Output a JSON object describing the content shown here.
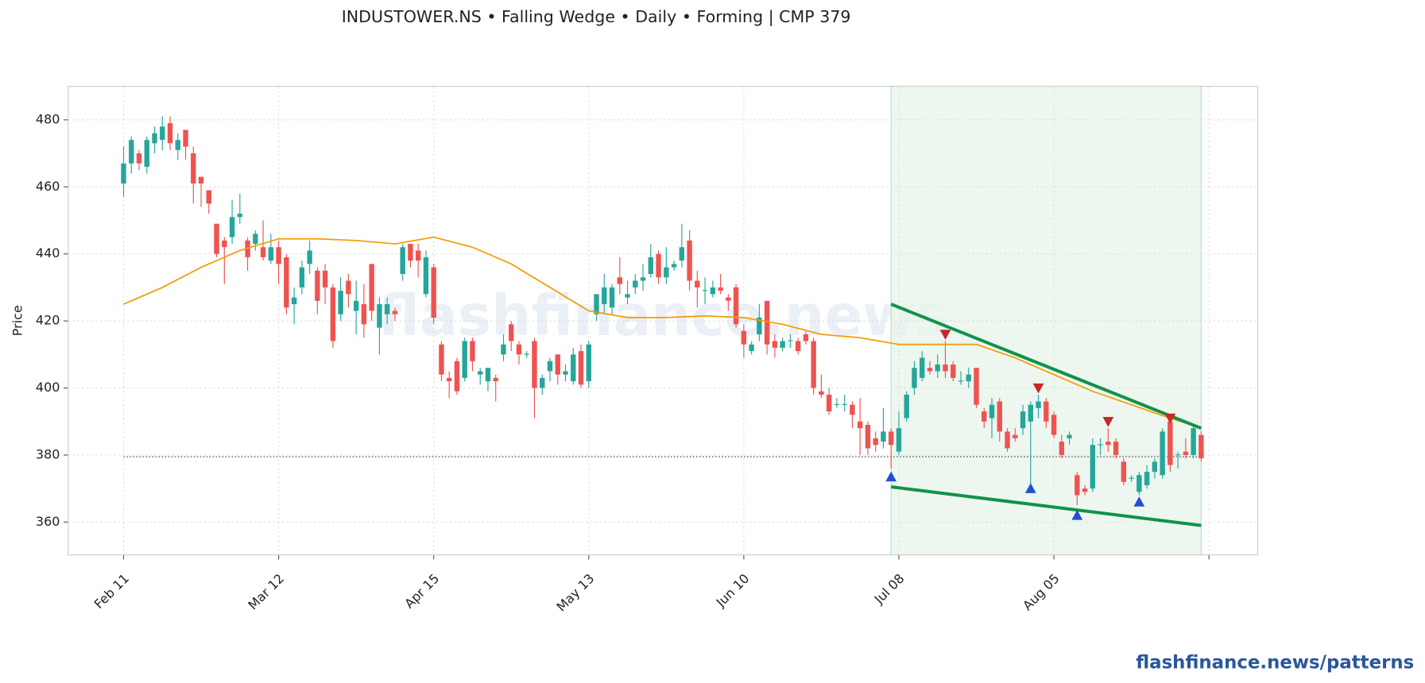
{
  "chart_data": {
    "type": "candlestick",
    "title": "INDUSTOWER.NS  •  Falling Wedge  •  Daily  •  Forming  |  CMP 379",
    "ylabel": "Price",
    "watermark": "flashfinance.news",
    "footer": "flashfinance.news/patterns",
    "up_color": "#26a69a",
    "down_color": "#ef5350",
    "grid": true,
    "xlim": [
      -7.15,
      146.3
    ],
    "ylim": [
      350.2,
      490
    ],
    "yticks": [
      360,
      380,
      400,
      420,
      440,
      460,
      480
    ],
    "xticks": [
      {
        "value": 0,
        "label": "Feb 11"
      },
      {
        "value": 20,
        "label": "Mar 12"
      },
      {
        "value": 40,
        "label": "Apr 15"
      },
      {
        "value": 60,
        "label": "May 13"
      },
      {
        "value": 80,
        "label": "Jun 10"
      },
      {
        "value": 100,
        "label": "Jul 08"
      },
      {
        "value": 120,
        "label": "Aug 05"
      },
      {
        "value": 140
      }
    ],
    "ohlc": [
      [
        461,
        472,
        457,
        467
      ],
      [
        467,
        475,
        464,
        474
      ],
      [
        470,
        471,
        465,
        467
      ],
      [
        466,
        475,
        464,
        474
      ],
      [
        473,
        478,
        470,
        476
      ],
      [
        474,
        481,
        471,
        478
      ],
      [
        479,
        481,
        471,
        473
      ],
      [
        471,
        476,
        468,
        474
      ],
      [
        477,
        477,
        468,
        472
      ],
      [
        470,
        472,
        455,
        461
      ],
      [
        463,
        463,
        454,
        461
      ],
      [
        459,
        459,
        452,
        455
      ],
      [
        449,
        449,
        439,
        440
      ],
      [
        444,
        445,
        431,
        442
      ],
      [
        445,
        456,
        443,
        451
      ],
      [
        451,
        458,
        449,
        452
      ],
      [
        444,
        445,
        435,
        439
      ],
      [
        443,
        447,
        441,
        446
      ],
      [
        442,
        450,
        438,
        439
      ],
      [
        438,
        446,
        437,
        442
      ],
      [
        442,
        444,
        431,
        437
      ],
      [
        439,
        440,
        422,
        424
      ],
      [
        425,
        430,
        419,
        427
      ],
      [
        430,
        438,
        428,
        436
      ],
      [
        437,
        444,
        434,
        441
      ],
      [
        435,
        436,
        422,
        426
      ],
      [
        435,
        437,
        425,
        430
      ],
      [
        430,
        431,
        412,
        414
      ],
      [
        422,
        433,
        420,
        429
      ],
      [
        432,
        434,
        424,
        428
      ],
      [
        423,
        432,
        416,
        426
      ],
      [
        425,
        431,
        415,
        419
      ],
      [
        437,
        437,
        420,
        423
      ],
      [
        418,
        427,
        410,
        425
      ],
      [
        422,
        427,
        419,
        425
      ],
      [
        423,
        424,
        420,
        422
      ],
      [
        434,
        443,
        432,
        442
      ],
      [
        443,
        443,
        436,
        438
      ],
      [
        441,
        443,
        433,
        438
      ],
      [
        428,
        441,
        427,
        439
      ],
      [
        436,
        437,
        419,
        421
      ],
      [
        413,
        414,
        402,
        404
      ],
      [
        403,
        405,
        397,
        402
      ],
      [
        408,
        409,
        398,
        399
      ],
      [
        403,
        415,
        402,
        414
      ],
      [
        414,
        415,
        405,
        408
      ],
      [
        404,
        406,
        401,
        405
      ],
      [
        402,
        406,
        399,
        406
      ],
      [
        403,
        404,
        396,
        402
      ],
      [
        410,
        416,
        408,
        413
      ],
      [
        419,
        420,
        411,
        414
      ],
      [
        413,
        414,
        407,
        410
      ],
      [
        410,
        411,
        409,
        410.2
      ],
      [
        414,
        415,
        391,
        400
      ],
      [
        400,
        404,
        398,
        403
      ],
      [
        405,
        409,
        402,
        408
      ],
      [
        410,
        410,
        401,
        404
      ],
      [
        404,
        407,
        402,
        405
      ],
      [
        402,
        412,
        401,
        410
      ],
      [
        411,
        413,
        400,
        401
      ],
      [
        402,
        414,
        400,
        413
      ],
      [
        422,
        428,
        420,
        428
      ],
      [
        425,
        434,
        422,
        430
      ],
      [
        424,
        431,
        422,
        430
      ],
      [
        433,
        439,
        428,
        431
      ],
      [
        427,
        432,
        425,
        428
      ],
      [
        430,
        434,
        428,
        432
      ],
      [
        432,
        437,
        429,
        433
      ],
      [
        434,
        443,
        433,
        439
      ],
      [
        440,
        441,
        431,
        433
      ],
      [
        433,
        442,
        431,
        436
      ],
      [
        436,
        438,
        435,
        437
      ],
      [
        438,
        449,
        436,
        442
      ],
      [
        444,
        447,
        429,
        432
      ],
      [
        432,
        435,
        424,
        430
      ],
      [
        429,
        433,
        425,
        429.2
      ],
      [
        428,
        432,
        427,
        430
      ],
      [
        430,
        434,
        428,
        429
      ],
      [
        427,
        428,
        423,
        426
      ],
      [
        430,
        431,
        418,
        419
      ],
      [
        417,
        419,
        409,
        413
      ],
      [
        411,
        414,
        410,
        413
      ],
      [
        416,
        425,
        414,
        421
      ],
      [
        426,
        426,
        410,
        413
      ],
      [
        414,
        416,
        409,
        412
      ],
      [
        412,
        415,
        411,
        414
      ],
      [
        414,
        416,
        412,
        414.2
      ],
      [
        414,
        415,
        410,
        411
      ],
      [
        416,
        417,
        413,
        414
      ],
      [
        414,
        415,
        398,
        400
      ],
      [
        399,
        404,
        397,
        398
      ],
      [
        398,
        400,
        392,
        393
      ],
      [
        395,
        397,
        394,
        395.2
      ],
      [
        395,
        398,
        393,
        395.2
      ],
      [
        395,
        396,
        388,
        392
      ],
      [
        390,
        397,
        380,
        388
      ],
      [
        389,
        390,
        380,
        382
      ],
      [
        385,
        387,
        381,
        383
      ],
      [
        384,
        394,
        382,
        387
      ],
      [
        387,
        388,
        376,
        383
      ],
      [
        381,
        393,
        380,
        388
      ],
      [
        391,
        399,
        390,
        398
      ],
      [
        400,
        408,
        398,
        406
      ],
      [
        403,
        411,
        402,
        409
      ],
      [
        406,
        408,
        404,
        405
      ],
      [
        405,
        410,
        403,
        407
      ],
      [
        407,
        414,
        403,
        405
      ],
      [
        407,
        408,
        402,
        403
      ],
      [
        402,
        405,
        401,
        402.2
      ],
      [
        402,
        406,
        400,
        404
      ],
      [
        406,
        406,
        394,
        395
      ],
      [
        393,
        394,
        388,
        390
      ],
      [
        391,
        397,
        385,
        395
      ],
      [
        396,
        397,
        384,
        387
      ],
      [
        387,
        388,
        381,
        382
      ],
      [
        386,
        388,
        384,
        385
      ],
      [
        388,
        395,
        386,
        393
      ],
      [
        390,
        396,
        371,
        395
      ],
      [
        394,
        398,
        391,
        396
      ],
      [
        396,
        397,
        388,
        390
      ],
      [
        392,
        393,
        385,
        386
      ],
      [
        384,
        386,
        379,
        380
      ],
      [
        385,
        387,
        383,
        386
      ],
      [
        374,
        375,
        365,
        368
      ],
      [
        370,
        371,
        368,
        369
      ],
      [
        370,
        385,
        369,
        383
      ],
      [
        383,
        385,
        380,
        383.2
      ],
      [
        384,
        388,
        381,
        383
      ],
      [
        384,
        385,
        379,
        380
      ],
      [
        378,
        379,
        371,
        372
      ],
      [
        373,
        374,
        372,
        373.2
      ],
      [
        369,
        375,
        368,
        374
      ],
      [
        371,
        377,
        370,
        375
      ],
      [
        375,
        379,
        373,
        378
      ],
      [
        374,
        388,
        373,
        387
      ],
      [
        390,
        392,
        375,
        377
      ],
      [
        380,
        381,
        376,
        380.2
      ],
      [
        381,
        385,
        379,
        380
      ],
      [
        380,
        389,
        379,
        388
      ],
      [
        386,
        387,
        378,
        379
      ]
    ],
    "ma": {
      "color": "#f59b00",
      "x": [
        0,
        5,
        10,
        15,
        20,
        25,
        30,
        35,
        40,
        45,
        50,
        55,
        60,
        65,
        70,
        75,
        80,
        85,
        90,
        95,
        100,
        105,
        110,
        115,
        120,
        125,
        130,
        135,
        139
      ],
      "values": [
        425,
        430,
        436,
        441,
        444.5,
        444.5,
        444,
        443,
        445,
        442,
        437,
        430,
        423,
        421,
        421,
        421.5,
        421,
        419,
        416,
        415,
        413,
        413,
        413,
        409,
        404,
        399,
        395,
        391,
        388
      ]
    },
    "zone": {
      "color": "#e6f4ea",
      "x": [
        99,
        139
      ]
    },
    "wedge_color": "#13914a",
    "upper_line": {
      "x": [
        99,
        139
      ],
      "values": [
        425,
        388
      ]
    },
    "lower_line": {
      "x": [
        99,
        139
      ],
      "values": [
        370.5,
        359
      ]
    },
    "swing_highs": {
      "color": "#c62828",
      "x": [
        106,
        118,
        127,
        135
      ],
      "values": [
        416,
        400,
        390,
        391
      ]
    },
    "swing_lows": {
      "color": "#1f4fd8",
      "x": [
        99,
        117,
        123,
        131
      ],
      "values": [
        373.5,
        370,
        362,
        366
      ]
    },
    "cmp_line": {
      "x": [
        0,
        139
      ],
      "value": 379.5
    }
  }
}
